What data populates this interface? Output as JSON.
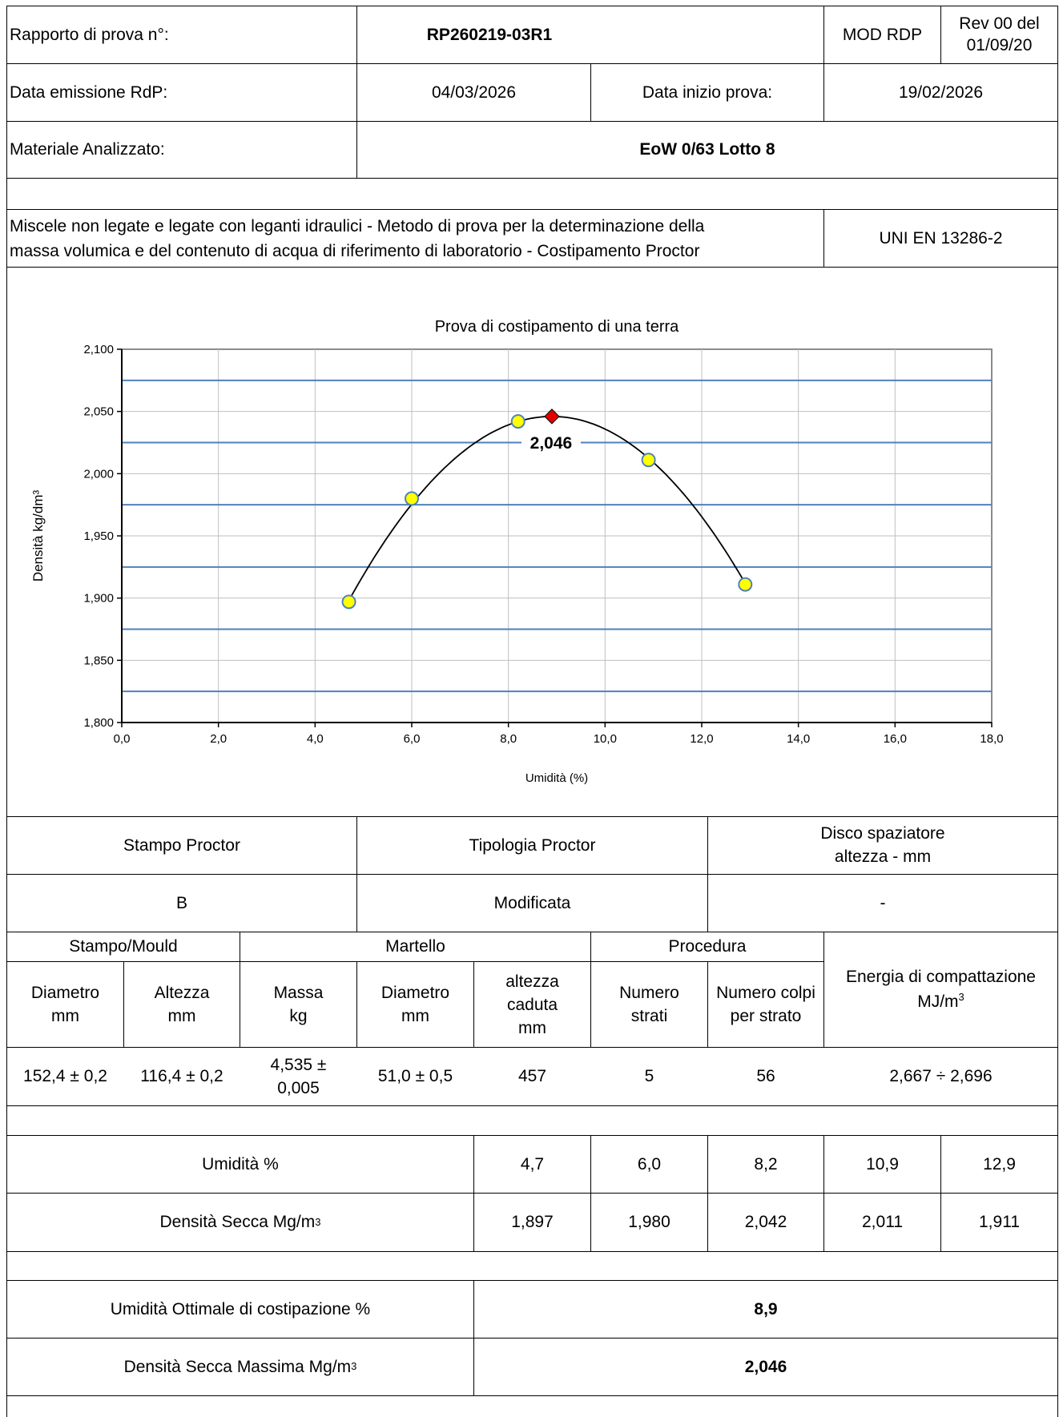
{
  "header": {
    "report_label": "Rapporto di prova n°:",
    "report_number": "RP260219-03R1",
    "mod": "MOD RDP",
    "rev_line1": "Rev 00 del",
    "rev_line2": "01/09/20",
    "issue_label": "Data emissione RdP:",
    "issue_date": "04/03/2026",
    "start_label": "Data inizio prova:",
    "start_date": "19/02/2026",
    "material_label": "Materiale Analizzato:",
    "material": "EoW 0/63 Lotto 8",
    "method_line1": "Miscele non legate e legate con leganti idraulici - Metodo di prova per la determinazione della",
    "method_line2": "massa volumica e del contenuto di acqua di riferimento di laboratorio - Costipamento Proctor",
    "standard": "UNI EN 13286-2"
  },
  "chart_data": {
    "type": "scatter",
    "title": "Prova di costipamento di una terra",
    "xlabel": "Umidità (%)",
    "ylabel": "Densità kg/dm³",
    "xlim": [
      0,
      18
    ],
    "ylim": [
      1.8,
      2.1
    ],
    "x_ticks": [
      "0,0",
      "2,0",
      "4,0",
      "6,0",
      "8,0",
      "10,0",
      "12,0",
      "14,0",
      "16,0",
      "18,0"
    ],
    "y_ticks": [
      "1,800",
      "1,850",
      "1,900",
      "1,950",
      "2,000",
      "2,050",
      "2,100"
    ],
    "grid": true,
    "series": [
      {
        "x": [
          4.7,
          6.0,
          8.2,
          10.9,
          12.9
        ],
        "y": [
          1.897,
          1.98,
          2.042,
          2.011,
          1.911
        ],
        "marker": "circle",
        "color": "#ffff00"
      }
    ],
    "maximum": {
      "x": 8.9,
      "y": 2.046,
      "label": "2,046",
      "marker": "diamond",
      "color": "#e00000"
    },
    "fit": "quadratic"
  },
  "proctor": {
    "stampo_label": "Stampo Proctor",
    "tipologia_label": "Tipologia Proctor",
    "disco_line1": "Disco spaziatore",
    "disco_line2": "altezza - mm",
    "stampo_value": "B",
    "tipologia_value": "Modificata",
    "disco_value": "-"
  },
  "params": {
    "group_stampo": "Stampo/Mould",
    "group_martello": "Martello",
    "group_procedura": "Procedura",
    "energy_label": "Energia di compattazione",
    "energy_unit": "MJ/m",
    "energy_unit_sup": "3",
    "headers": [
      [
        "Diametro",
        "mm"
      ],
      [
        "Altezza",
        "mm"
      ],
      [
        "Massa",
        "kg"
      ],
      [
        "Diametro",
        "mm"
      ],
      [
        "altezza",
        "caduta",
        "mm"
      ],
      [
        "Numero",
        "strati"
      ],
      [
        "Numero colpi",
        "per strato"
      ]
    ],
    "values": [
      "152,4 ± 0,2",
      "116,4 ± 0,2",
      "4,535 ±",
      "0,005",
      "51,0 ± 0,5",
      "457",
      "5",
      "56",
      "2,667 ÷ 2,696"
    ]
  },
  "results": {
    "umidita_label": "Umidità %",
    "umidita": [
      "4,7",
      "6,0",
      "8,2",
      "10,9",
      "12,9"
    ],
    "densita_label": "Densità Secca Mg/m",
    "densita_sup": "3",
    "densita": [
      "1,897",
      "1,980",
      "2,042",
      "2,011",
      "1,911"
    ]
  },
  "summary": {
    "opt_label": "Umidità Ottimale di costipazione %",
    "opt_value": "8,9",
    "max_label": "Densità Secca Massima Mg/m",
    "max_sup": "3",
    "max_value": "2,046"
  }
}
